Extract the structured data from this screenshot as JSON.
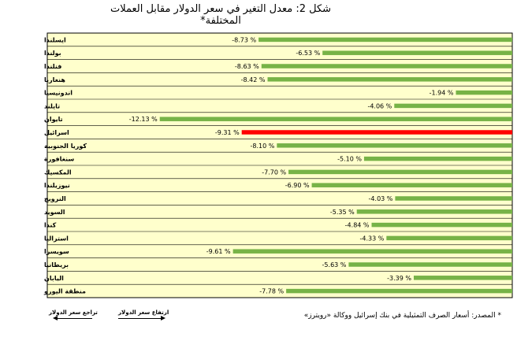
{
  "title": "شكل 2: معدل التغير في سعر الدولار مقابل العملات المختلفة*",
  "source": "* المصدر: أسعار الصرف التمثيلية في بنك إسرائيل ووكالة «رويترز»",
  "legend": {
    "left_label": "تراجع سعر الدولار",
    "right_label": "ارتفاع سعر الدولار"
  },
  "colors": {
    "plot_bg": "#FFFFCC",
    "bar": "#77B347",
    "highlight_bar": "#FF0000"
  },
  "chart_data": {
    "type": "bar",
    "orientation": "horizontal",
    "categories": [
      "ايسلندا",
      "بولندا",
      "فنلندا",
      "هنغاريا",
      "اندونيسيا",
      "تايلند",
      "تايوان",
      "اسرائيل",
      "كوريا الجنوبية",
      "سنغافورة",
      "المكسيك",
      "نيوزيلندا",
      "النرويج",
      "السويد",
      "كندا",
      "استراليا",
      "سويسرا",
      "بريطانيا",
      "اليابان",
      "منطقة اليورو"
    ],
    "values": [
      -8.73,
      -6.53,
      -8.63,
      -8.42,
      -1.94,
      -4.06,
      -12.13,
      -9.31,
      -8.1,
      -5.1,
      -7.7,
      -6.9,
      -4.03,
      -5.35,
      -4.84,
      -4.33,
      -9.61,
      -5.63,
      -3.39,
      -7.78
    ],
    "value_labels": [
      "-8.73 %",
      "-6.53 %",
      "-8.63 %",
      "-8.42 %",
      "-1.94 %",
      "-4.06 %",
      "-12.13 %",
      "-9.31 %",
      "-8.10 %",
      "-5.10 %",
      "-7.70 %",
      "-6.90 %",
      "-4.03 %",
      "-5.35 %",
      "-4.84 %",
      "-4.33 %",
      "-9.61 %",
      "-5.63 %",
      "-3.39 %",
      "-7.78 %"
    ],
    "highlight_category": "اسرائيل",
    "xlim": [
      -16,
      0
    ],
    "grid": true,
    "legend_placement": "bottom-left"
  }
}
